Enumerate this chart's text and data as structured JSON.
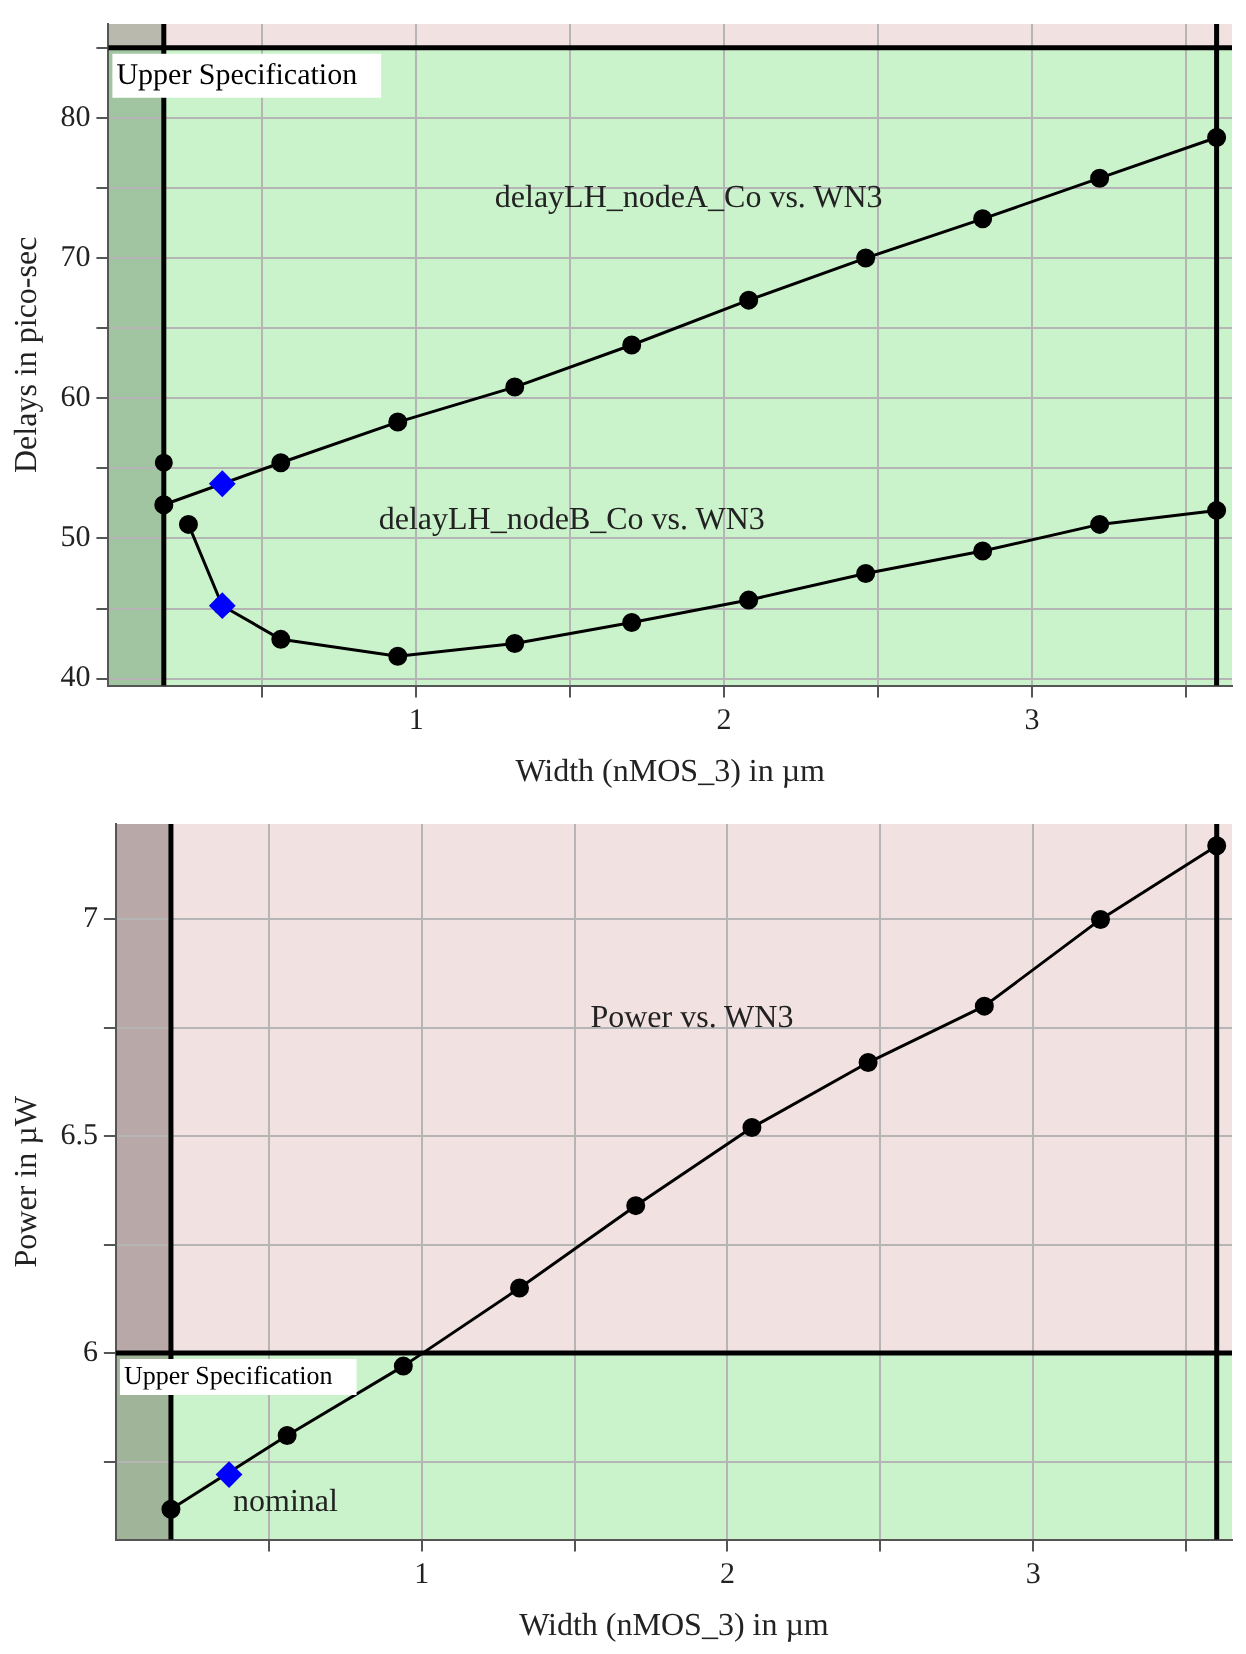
{
  "chart_data": [
    {
      "type": "line",
      "xlabel": "Width (nMOS_3) in µm",
      "ylabel": "Delays in pico-sec",
      "xlim": [
        0,
        3.65
      ],
      "ylim": [
        39.5,
        86.7
      ],
      "xticks": [
        {
          "value": 0.5,
          "label": null
        },
        1,
        {
          "value": 1.5,
          "label": null
        },
        2,
        {
          "value": 2.5,
          "label": null
        },
        3,
        {
          "value": 3.5,
          "label": null
        }
      ],
      "yticks": [
        40,
        {
          "value": 45,
          "label": null
        },
        50,
        {
          "value": 55,
          "label": null
        },
        60,
        {
          "value": 65,
          "label": null
        },
        70,
        {
          "value": 75,
          "label": null
        },
        80,
        {
          "value": 85,
          "label": null
        }
      ],
      "grid": true,
      "marker": "circle",
      "bands": [
        {
          "axis": "y",
          "from": 85,
          "to": 86.7,
          "color": "#f2e1e1"
        },
        {
          "axis": "y",
          "from": 39.5,
          "to": 85,
          "color": "#cbf3cb"
        },
        {
          "axis": "x",
          "from": 0,
          "to": 0.18,
          "color": "#4f6f4f"
        }
      ],
      "ref_lines": [
        {
          "axis": "y",
          "value": 85,
          "label": "Upper Specification"
        },
        {
          "axis": "x",
          "value": 0.18
        },
        {
          "axis": "x",
          "value": 3.6
        }
      ],
      "series": [
        {
          "name": "delayLH_nodeA_Co vs. WN3",
          "color": "#000000",
          "x": [
            0.18,
            0.56,
            0.94,
            1.32,
            1.7,
            2.08,
            2.46,
            2.84,
            3.22,
            3.6
          ],
          "values": [
            52.4,
            55.4,
            58.3,
            60.8,
            63.8,
            67.0,
            70.0,
            72.8,
            75.7,
            78.6
          ]
        },
        {
          "name": "delayLH_nodeB_Co vs. WN3",
          "color": "#000000",
          "x": [
            0.26,
            0.37,
            0.56,
            0.94,
            1.32,
            1.7,
            2.08,
            2.46,
            2.84,
            3.22,
            3.6
          ],
          "values": [
            51.0,
            45.2,
            42.8,
            41.6,
            42.5,
            44.0,
            45.6,
            47.5,
            49.1,
            51.0,
            52.0
          ]
        },
        {
          "type": "scatter",
          "color": "#000000",
          "x": [
            0.18
          ],
          "values": [
            55.4
          ]
        },
        {
          "type": "scatter",
          "color": "#0000ff",
          "marker": "diamond",
          "x": [
            0.37,
            0.37
          ],
          "values": [
            53.9,
            45.2
          ]
        }
      ]
    },
    {
      "type": "line",
      "xlabel": "Width (nMOS_3) in µm",
      "ylabel": "Power in µW",
      "xlim": [
        0,
        3.65
      ],
      "ylim": [
        5.57,
        7.22
      ],
      "xticks": [
        {
          "value": 0.5,
          "label": null
        },
        1,
        {
          "value": 1.5,
          "label": null
        },
        2,
        {
          "value": 2.5,
          "label": null
        },
        3,
        {
          "value": 3.5,
          "label": null
        }
      ],
      "yticks": [
        {
          "value": 5.75,
          "label": null
        },
        6,
        {
          "value": 6.25,
          "label": null
        },
        6.5,
        {
          "value": 6.75,
          "label": null
        },
        7
      ],
      "grid": true,
      "marker": "circle",
      "bands": [
        {
          "axis": "y",
          "from": 6,
          "to": 7.22,
          "color": "#f2e1e1"
        },
        {
          "axis": "y",
          "from": 5.57,
          "to": 6,
          "color": "#cbf3cb"
        },
        {
          "axis": "x",
          "from": 0,
          "to": 0.18,
          "color": "#4f3f3f"
        }
      ],
      "ref_lines": [
        {
          "axis": "y",
          "value": 6,
          "label": "Upper Specification"
        },
        {
          "axis": "x",
          "value": 0.18
        },
        {
          "axis": "x",
          "value": 3.6
        }
      ],
      "annotations": [
        {
          "text": "nominal",
          "x": 0.37,
          "y": 5.72
        }
      ],
      "series": [
        {
          "name": "Power vs. WN3",
          "color": "#000000",
          "x": [
            0.18,
            0.56,
            0.94,
            1.32,
            1.7,
            2.08,
            2.46,
            2.84,
            3.22,
            3.6
          ],
          "values": [
            5.64,
            5.81,
            5.97,
            6.15,
            6.34,
            6.52,
            6.67,
            6.8,
            7.0,
            7.17
          ]
        },
        {
          "type": "scatter",
          "color": "#0000ff",
          "marker": "diamond",
          "x": [
            0.37
          ],
          "values": [
            5.72
          ]
        }
      ]
    }
  ]
}
